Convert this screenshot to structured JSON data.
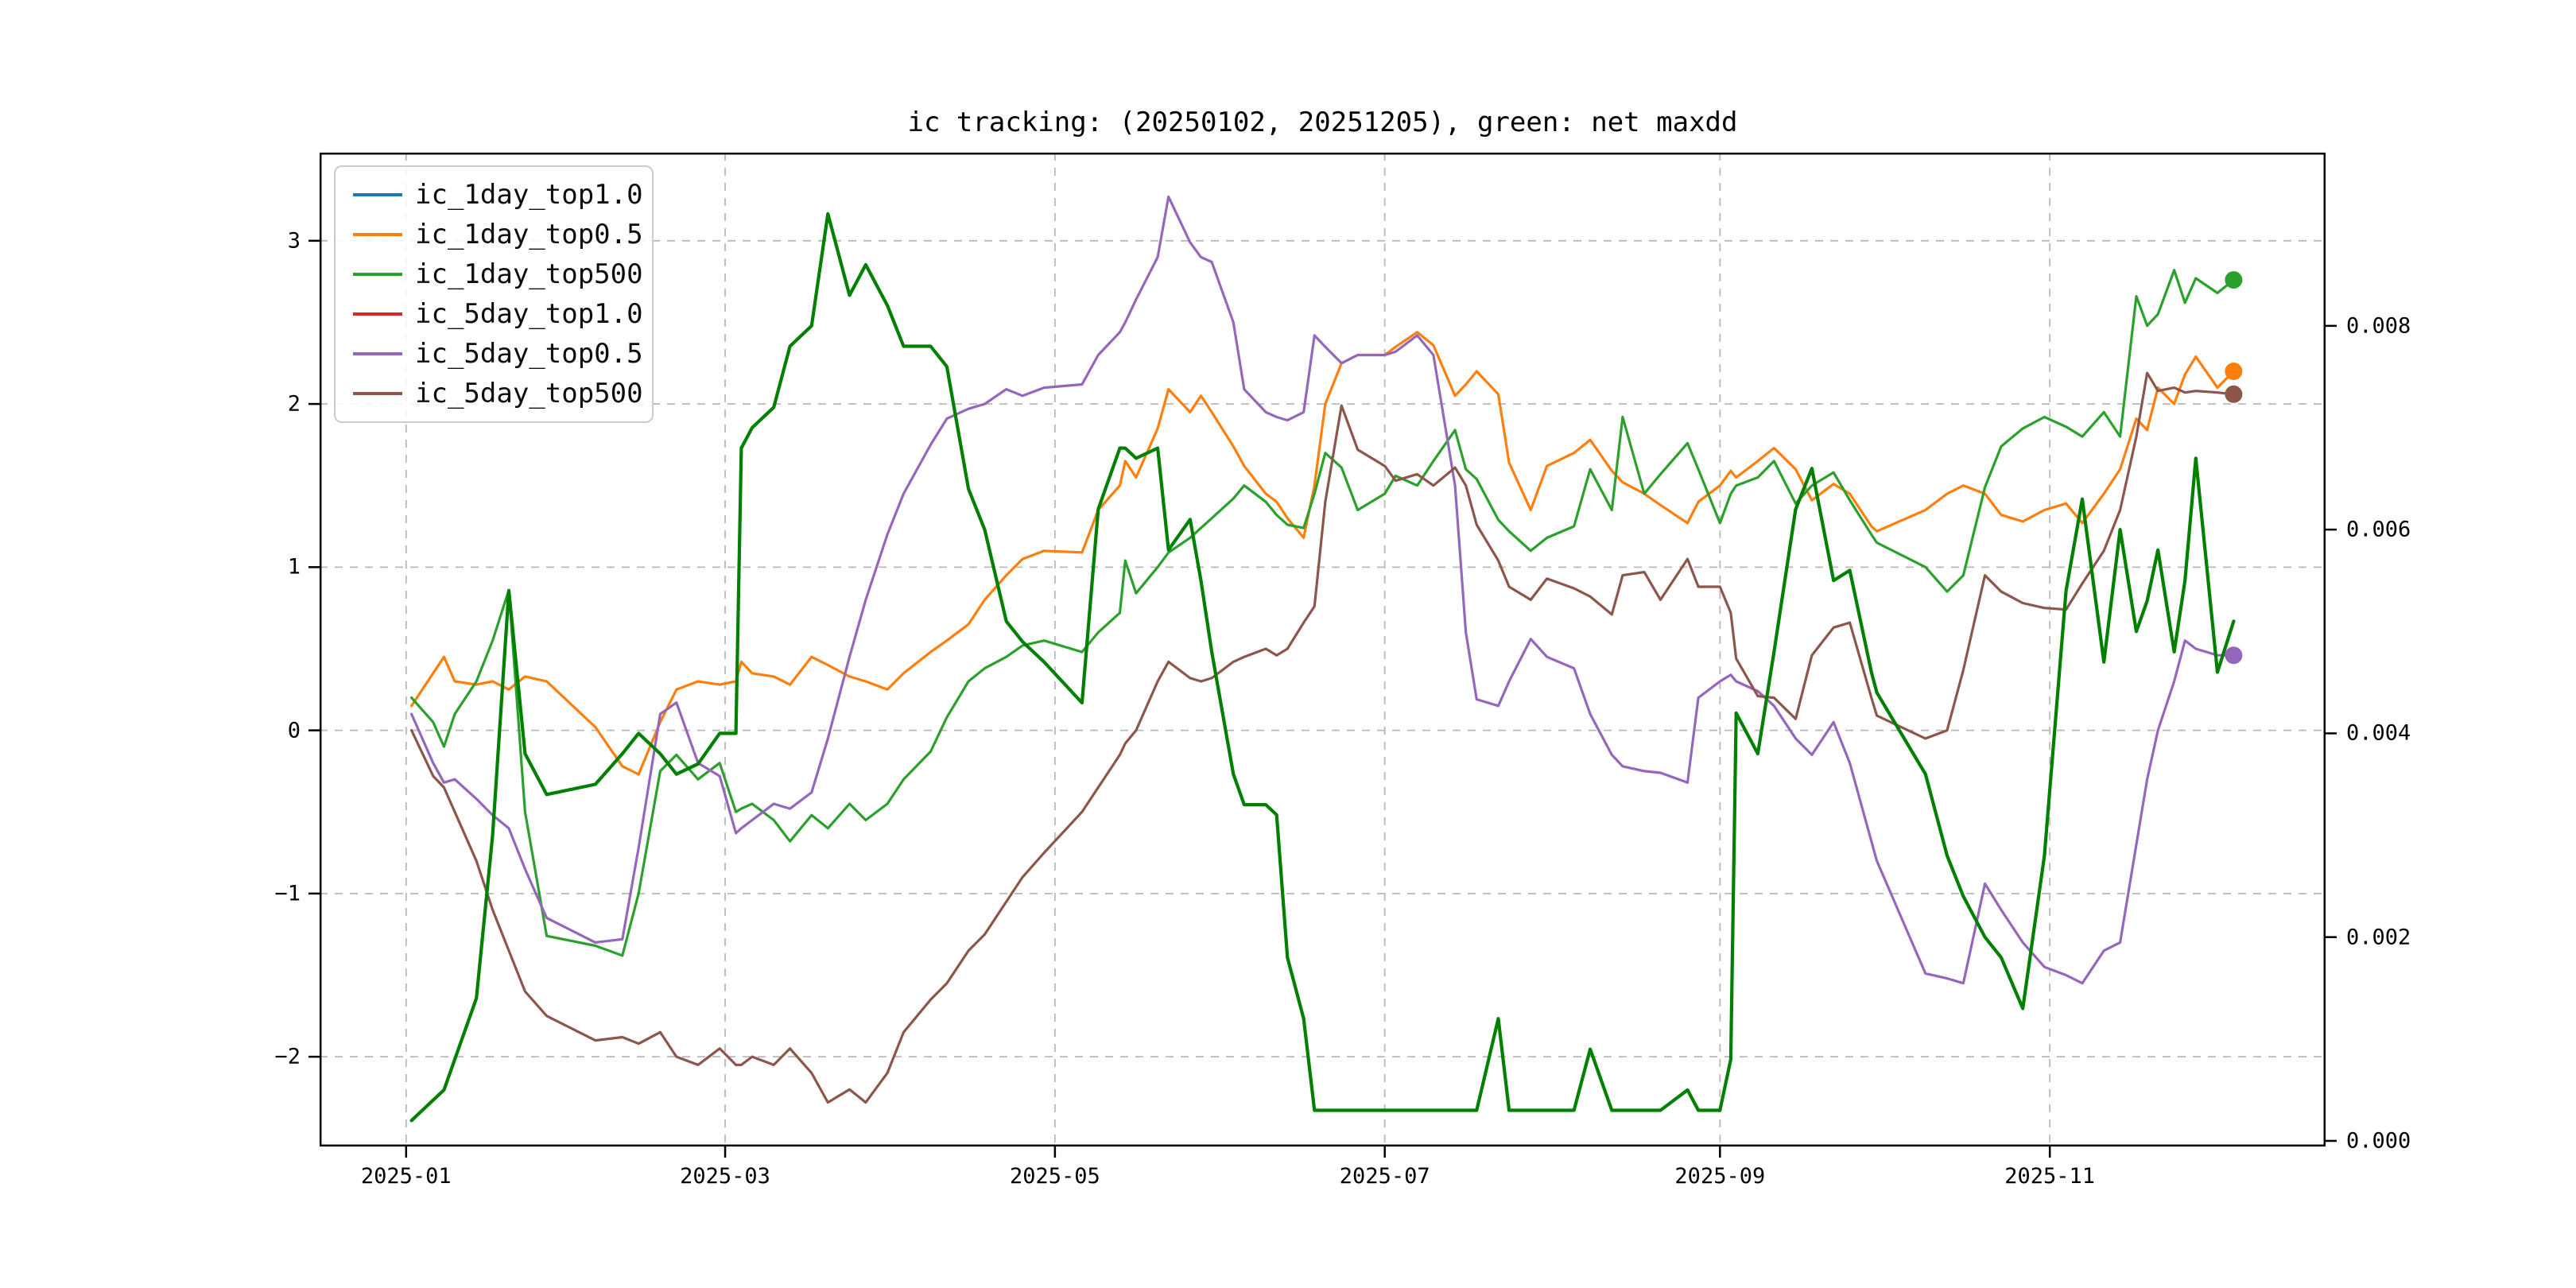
{
  "title": "ic tracking: (20250102, 20251205), green: net maxdd",
  "legend": {
    "position": "upper-left",
    "entries": [
      {
        "label": "ic_1day_top1.0",
        "color": "#1f77b4"
      },
      {
        "label": "ic_1day_top0.5",
        "color": "#ff7f0e"
      },
      {
        "label": "ic_1day_top500",
        "color": "#2ca02c"
      },
      {
        "label": "ic_5day_top1.0",
        "color": "#d62728"
      },
      {
        "label": "ic_5day_top0.5",
        "color": "#9467bd"
      },
      {
        "label": "ic_5day_top500",
        "color": "#8c564b"
      }
    ]
  },
  "axes": {
    "left_ticks": [
      3,
      2,
      1,
      0,
      -1,
      -2
    ],
    "right_ticks": [
      0.008,
      0.006,
      0.004,
      0.002,
      0.0
    ],
    "right_tick_labels": [
      "0.008",
      "0.006",
      "0.004",
      "0.002",
      "0.000"
    ],
    "x_tick_labels": [
      "2025-01",
      "2025-03",
      "2025-05",
      "2025-07",
      "2025-09",
      "2025-11"
    ],
    "x_tick_months": [
      "2025-01-01",
      "2025-03-01",
      "2025-05-01",
      "2025-07-01",
      "2025-09-01",
      "2025-11-01"
    ],
    "grid": true
  },
  "chart_data": {
    "type": "line",
    "title": "ic tracking: (20250102, 20251205), green: net maxdd",
    "xlabel": "",
    "ylabel": "",
    "x_domain": [
      "2024-12-16",
      "2025-12-22"
    ],
    "left_ylim": [
      -2.55,
      3.54
    ],
    "right_ylim": [
      -5.5e-05,
      0.0097
    ],
    "x": [
      "2025-01-02",
      "2025-01-06",
      "2025-01-08",
      "2025-01-10",
      "2025-01-14",
      "2025-01-17",
      "2025-01-20",
      "2025-01-23",
      "2025-01-27",
      "2025-02-05",
      "2025-02-10",
      "2025-02-13",
      "2025-02-17",
      "2025-02-20",
      "2025-02-24",
      "2025-02-28",
      "2025-03-03",
      "2025-03-04",
      "2025-03-06",
      "2025-03-10",
      "2025-03-13",
      "2025-03-17",
      "2025-03-20",
      "2025-03-24",
      "2025-03-27",
      "2025-03-31",
      "2025-04-03",
      "2025-04-08",
      "2025-04-11",
      "2025-04-15",
      "2025-04-18",
      "2025-04-22",
      "2025-04-25",
      "2025-04-29",
      "2025-05-06",
      "2025-05-09",
      "2025-05-13",
      "2025-05-14",
      "2025-05-16",
      "2025-05-20",
      "2025-05-22",
      "2025-05-26",
      "2025-05-28",
      "2025-05-30",
      "2025-06-03",
      "2025-06-05",
      "2025-06-09",
      "2025-06-11",
      "2025-06-13",
      "2025-06-16",
      "2025-06-18",
      "2025-06-20",
      "2025-06-23",
      "2025-06-26",
      "2025-07-01",
      "2025-07-03",
      "2025-07-07",
      "2025-07-10",
      "2025-07-14",
      "2025-07-16",
      "2025-07-18",
      "2025-07-22",
      "2025-07-24",
      "2025-07-28",
      "2025-07-31",
      "2025-08-05",
      "2025-08-08",
      "2025-08-12",
      "2025-08-14",
      "2025-08-18",
      "2025-08-21",
      "2025-08-26",
      "2025-08-28",
      "2025-09-01",
      "2025-09-03",
      "2025-09-04",
      "2025-09-08",
      "2025-09-11",
      "2025-09-15",
      "2025-09-18",
      "2025-09-22",
      "2025-09-25",
      "2025-09-29",
      "2025-09-30",
      "2025-10-09",
      "2025-10-13",
      "2025-10-16",
      "2025-10-20",
      "2025-10-23",
      "2025-10-27",
      "2025-10-31",
      "2025-11-04",
      "2025-11-07",
      "2025-11-11",
      "2025-11-14",
      "2025-11-17",
      "2025-11-19",
      "2025-11-21",
      "2025-11-24",
      "2025-11-26",
      "2025-11-28",
      "2025-12-02",
      "2025-12-05"
    ],
    "series": [
      {
        "name": "ic_1day_top1.0",
        "color": "#1f77b4",
        "axis": "left",
        "visible": false,
        "end_marker": false,
        "note": "not visually distinguishable in the plot (hidden beneath other series)",
        "values": null
      },
      {
        "name": "ic_1day_top0.5",
        "color": "#ff7f0e",
        "axis": "left",
        "visible": true,
        "end_marker": true,
        "linewidth": 3.2,
        "values": [
          0.15,
          0.35,
          0.45,
          0.3,
          0.28,
          0.3,
          0.25,
          0.33,
          0.3,
          0.02,
          -0.22,
          -0.27,
          0.05,
          0.25,
          0.3,
          0.28,
          0.3,
          0.42,
          0.35,
          0.33,
          0.28,
          0.45,
          0.4,
          0.33,
          0.3,
          0.25,
          0.35,
          0.48,
          0.55,
          0.65,
          0.8,
          0.95,
          1.05,
          1.1,
          1.09,
          1.35,
          1.5,
          1.65,
          1.55,
          1.85,
          2.09,
          1.95,
          2.05,
          1.95,
          1.74,
          1.62,
          1.45,
          1.4,
          1.3,
          1.18,
          1.5,
          2.0,
          2.25,
          2.3,
          2.3,
          2.35,
          2.44,
          2.36,
          2.05,
          2.12,
          2.2,
          2.06,
          1.64,
          1.35,
          1.62,
          1.7,
          1.78,
          1.59,
          1.52,
          1.45,
          1.38,
          1.27,
          1.4,
          1.5,
          1.59,
          1.55,
          1.65,
          1.73,
          1.6,
          1.41,
          1.51,
          1.45,
          1.25,
          1.22,
          1.35,
          1.45,
          1.5,
          1.45,
          1.32,
          1.28,
          1.35,
          1.39,
          1.27,
          1.45,
          1.6,
          1.91,
          1.84,
          2.1,
          2.0,
          2.18,
          2.29,
          2.1,
          2.2
        ]
      },
      {
        "name": "ic_1day_top500",
        "color": "#2ca02c",
        "axis": "left",
        "visible": true,
        "end_marker": true,
        "linewidth": 3.2,
        "values": [
          0.2,
          0.05,
          -0.1,
          0.1,
          0.3,
          0.55,
          0.86,
          -0.5,
          -1.26,
          -1.32,
          -1.38,
          -1.0,
          -0.25,
          -0.15,
          -0.3,
          -0.2,
          -0.5,
          -0.48,
          -0.45,
          -0.55,
          -0.68,
          -0.52,
          -0.6,
          -0.45,
          -0.55,
          -0.45,
          -0.3,
          -0.13,
          0.08,
          0.3,
          0.38,
          0.45,
          0.52,
          0.55,
          0.48,
          0.6,
          0.72,
          1.04,
          0.84,
          1.0,
          1.09,
          1.18,
          1.24,
          1.3,
          1.42,
          1.5,
          1.4,
          1.32,
          1.26,
          1.24,
          1.45,
          1.7,
          1.61,
          1.35,
          1.45,
          1.56,
          1.5,
          1.65,
          1.84,
          1.6,
          1.54,
          1.29,
          1.22,
          1.1,
          1.18,
          1.25,
          1.6,
          1.35,
          1.92,
          1.45,
          1.57,
          1.76,
          1.6,
          1.27,
          1.45,
          1.5,
          1.55,
          1.65,
          1.39,
          1.5,
          1.58,
          1.41,
          1.2,
          1.15,
          1.0,
          0.85,
          0.95,
          1.49,
          1.74,
          1.85,
          1.92,
          1.86,
          1.8,
          1.95,
          1.8,
          2.66,
          2.48,
          2.55,
          2.82,
          2.62,
          2.77,
          2.68,
          2.76
        ]
      },
      {
        "name": "ic_5day_top1.0",
        "color": "#d62728",
        "axis": "left",
        "visible": false,
        "end_marker": false,
        "note": "not visually distinguishable in the plot (hidden beneath other series)",
        "values": null
      },
      {
        "name": "ic_5day_top0.5",
        "color": "#9467bd",
        "axis": "left",
        "visible": true,
        "end_marker": true,
        "linewidth": 3.2,
        "values": [
          0.1,
          -0.2,
          -0.32,
          -0.3,
          -0.42,
          -0.52,
          -0.6,
          -0.85,
          -1.15,
          -1.3,
          -1.28,
          -0.72,
          0.1,
          0.17,
          -0.2,
          -0.28,
          -0.63,
          -0.6,
          -0.55,
          -0.45,
          -0.48,
          -0.38,
          -0.05,
          0.45,
          0.8,
          1.2,
          1.45,
          1.75,
          1.91,
          1.97,
          2.0,
          2.09,
          2.05,
          2.1,
          2.12,
          2.3,
          2.44,
          2.5,
          2.64,
          2.9,
          3.27,
          2.99,
          2.9,
          2.87,
          2.5,
          2.09,
          1.95,
          1.92,
          1.9,
          1.95,
          2.42,
          2.35,
          2.25,
          2.3,
          2.3,
          2.32,
          2.42,
          2.3,
          1.5,
          0.6,
          0.19,
          0.15,
          0.3,
          0.56,
          0.45,
          0.38,
          0.1,
          -0.15,
          -0.22,
          -0.25,
          -0.26,
          -0.32,
          0.2,
          0.3,
          0.34,
          0.3,
          0.24,
          0.15,
          -0.05,
          -0.15,
          0.05,
          -0.2,
          -0.68,
          -0.8,
          -1.49,
          -1.52,
          -1.55,
          -0.94,
          -1.1,
          -1.3,
          -1.45,
          -1.5,
          -1.55,
          -1.35,
          -1.3,
          -0.7,
          -0.3,
          0.0,
          0.3,
          0.55,
          0.5,
          0.46,
          0.46
        ]
      },
      {
        "name": "ic_5day_top500",
        "color": "#8c564b",
        "axis": "left",
        "visible": true,
        "end_marker": true,
        "linewidth": 3.2,
        "values": [
          0.0,
          -0.28,
          -0.35,
          -0.5,
          -0.8,
          -1.1,
          -1.35,
          -1.6,
          -1.75,
          -1.9,
          -1.88,
          -1.92,
          -1.85,
          -2.0,
          -2.05,
          -1.95,
          -2.05,
          -2.05,
          -2.0,
          -2.05,
          -1.95,
          -2.1,
          -2.28,
          -2.2,
          -2.28,
          -2.1,
          -1.85,
          -1.65,
          -1.55,
          -1.35,
          -1.25,
          -1.05,
          -0.9,
          -0.75,
          -0.5,
          -0.35,
          -0.15,
          -0.08,
          0.0,
          0.3,
          0.42,
          0.32,
          0.3,
          0.32,
          0.42,
          0.45,
          0.5,
          0.46,
          0.5,
          0.66,
          0.76,
          1.4,
          1.99,
          1.72,
          1.62,
          1.53,
          1.57,
          1.5,
          1.61,
          1.5,
          1.26,
          1.04,
          0.88,
          0.8,
          0.93,
          0.87,
          0.82,
          0.71,
          0.95,
          0.97,
          0.8,
          1.05,
          0.88,
          0.88,
          0.72,
          0.44,
          0.21,
          0.2,
          0.07,
          0.46,
          0.63,
          0.66,
          0.2,
          0.09,
          -0.05,
          0.0,
          0.37,
          0.95,
          0.85,
          0.78,
          0.75,
          0.74,
          0.9,
          1.1,
          1.35,
          1.8,
          2.19,
          2.08,
          2.1,
          2.07,
          2.08,
          2.07,
          2.06
        ]
      },
      {
        "name": "net_maxdd",
        "color": "#008000",
        "axis": "right",
        "visible": true,
        "end_marker": false,
        "linewidth": 4.2,
        "note": "green net-maxdd curve referenced in the title, plotted against the right axis",
        "values": [
          0.0002,
          0.0004,
          0.0005,
          0.0008,
          0.0014,
          0.003,
          0.0054,
          0.0038,
          0.0034,
          0.0035,
          0.0038,
          0.004,
          0.0038,
          0.0036,
          0.0037,
          0.004,
          0.004,
          0.0068,
          0.007,
          0.0072,
          0.0078,
          0.008,
          0.0091,
          0.0083,
          0.0086,
          0.0082,
          0.0078,
          0.0078,
          0.0076,
          0.0064,
          0.006,
          0.0051,
          0.0049,
          0.0047,
          0.0043,
          0.0062,
          0.0068,
          0.0068,
          0.0067,
          0.0068,
          0.0058,
          0.0061,
          0.0055,
          0.0048,
          0.0036,
          0.0033,
          0.0033,
          0.0032,
          0.0018,
          0.0012,
          0.0003,
          0.0003,
          0.0003,
          0.0003,
          0.0003,
          0.0003,
          0.0003,
          0.0003,
          0.0003,
          0.0003,
          0.0003,
          0.0012,
          0.0003,
          0.0003,
          0.0003,
          0.0003,
          0.0009,
          0.0003,
          0.0003,
          0.0003,
          0.0003,
          0.0005,
          0.0003,
          0.0003,
          0.0008,
          0.0042,
          0.0038,
          0.0048,
          0.0062,
          0.0066,
          0.0055,
          0.0056,
          0.0046,
          0.0044,
          0.0036,
          0.0028,
          0.0024,
          0.002,
          0.0018,
          0.0013,
          0.0028,
          0.0054,
          0.0063,
          0.0047,
          0.006,
          0.005,
          0.0053,
          0.0058,
          0.0048,
          0.0055,
          0.0067,
          0.0046,
          0.0051
        ]
      }
    ]
  },
  "style": {
    "grid_color": "#b9b9b9",
    "spine_color": "#000000",
    "background": "#ffffff",
    "end_marker_radius": 11
  }
}
